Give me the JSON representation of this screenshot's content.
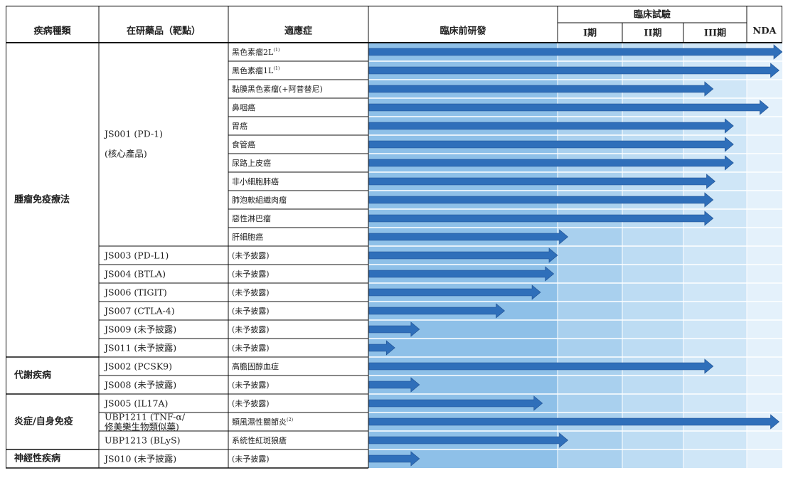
{
  "headers": {
    "disease": "疾病種類",
    "product": "在研藥品（靶點）",
    "indication": "適應症",
    "preclinical": "臨床前研發",
    "clinical": "臨床試驗",
    "phase1": "I期",
    "phase2": "II期",
    "phase3": "III期",
    "nda": "NDA"
  },
  "stage_shading": {
    "preclinical": "#8ec0e8",
    "phase1": "#a9d0ee",
    "phase2": "#bddcf3",
    "phase3": "#cfe6f7",
    "nda": "#e4f1fb"
  },
  "arrow_color": "#2f6fba",
  "areas": [
    {
      "name": "腫瘤免疫療法"
    },
    {
      "name": "代謝疾病"
    },
    {
      "name": "炎症/自身免疫"
    },
    {
      "name": "神經性疾病"
    }
  ],
  "products": [
    {
      "name": "JS001 (PD-1)",
      "note": "(核心產品)"
    },
    {
      "name": "JS003 (PD-L1)"
    },
    {
      "name": "JS004 (BTLA)"
    },
    {
      "name": "JS006 (TIGIT)"
    },
    {
      "name": "JS007 (CTLA-4)"
    },
    {
      "name": "JS009 (未予披露)"
    },
    {
      "name": "JS011 (未予披露)"
    },
    {
      "name": "JS002 (PCSK9)"
    },
    {
      "name": "JS008 (未予披露)"
    },
    {
      "name": "JS005 (IL17A)"
    },
    {
      "name": "UBP1211 (TNF-α/",
      "name2": "修美樂生物類似藥)"
    },
    {
      "name": "UBP1213 (BLyS)"
    },
    {
      "name": "JS010 (未予披露)"
    }
  ],
  "indications": [
    {
      "label": "黑色素瘤2L",
      "note": "(1)",
      "progress": 5.15
    },
    {
      "label": "黑色素瘤1L",
      "note": "(1)",
      "progress": 4.91
    },
    {
      "label": "黏膜黑色素瘤(+阿昔替尼)",
      "progress": 3.47
    },
    {
      "label": "鼻咽癌",
      "progress": 4.61
    },
    {
      "label": "胃癌",
      "progress": 3.79
    },
    {
      "label": "食管癌",
      "progress": 3.79
    },
    {
      "label": "尿路上皮癌",
      "progress": 3.79
    },
    {
      "label": "非小細胞肺癌",
      "progress": 3.5
    },
    {
      "label": "肺泡軟組織肉瘤",
      "progress": 3.47
    },
    {
      "label": "惡性淋巴瘤",
      "progress": 3.47
    },
    {
      "label": "肝細胞癌",
      "progress": 1.16
    },
    {
      "label": "(未予披露)",
      "progress": 1.0
    },
    {
      "label": "(未予披露)",
      "progress": 0.98
    },
    {
      "label": "(未予披露)",
      "progress": 0.91
    },
    {
      "label": "(未予披露)",
      "progress": 0.72
    },
    {
      "label": "(未予披露)",
      "progress": 0.27
    },
    {
      "label": "(未予披露)",
      "progress": 0.14
    },
    {
      "label": "高膽固醇血症",
      "progress": 3.47
    },
    {
      "label": "(未予披露)",
      "progress": 0.27
    },
    {
      "label": "(未予披露)",
      "progress": 0.92
    },
    {
      "label": "類風濕性關節炎",
      "note": "(2)",
      "progress": 4.91
    },
    {
      "label": "系統性紅斑狼瘡",
      "progress": 1.16
    },
    {
      "label": "(未予披露)",
      "progress": 0.27
    }
  ]
}
